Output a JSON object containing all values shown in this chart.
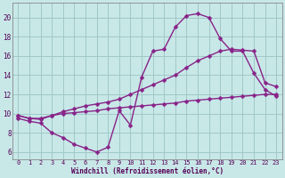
{
  "xlabel": "Windchill (Refroidissement éolien,°C)",
  "background_color": "#c8e8e8",
  "grid_color": "#a0c8c8",
  "line_color": "#882288",
  "x_ticks": [
    0,
    1,
    2,
    3,
    4,
    5,
    6,
    7,
    8,
    9,
    10,
    11,
    12,
    13,
    14,
    15,
    16,
    17,
    18,
    19,
    20,
    21,
    22,
    23
  ],
  "y_ticks": [
    6,
    8,
    10,
    12,
    14,
    16,
    18,
    20
  ],
  "xlim": [
    -0.5,
    23.5
  ],
  "ylim": [
    5.2,
    21.5
  ],
  "curve1_x": [
    0,
    1,
    2,
    3,
    4,
    5,
    6,
    7,
    8,
    9,
    10,
    11,
    12,
    13,
    14,
    15,
    16,
    17,
    18,
    19,
    20,
    21,
    22,
    23
  ],
  "curve1_y": [
    9.5,
    9.2,
    9.0,
    8.0,
    7.5,
    6.8,
    6.4,
    6.0,
    6.5,
    10.3,
    8.8,
    13.8,
    16.5,
    16.7,
    19.0,
    20.2,
    20.4,
    20.0,
    17.8,
    16.5,
    16.5,
    14.2,
    12.5,
    11.8
  ],
  "curve2_x": [
    0,
    1,
    2,
    3,
    4,
    5,
    6,
    7,
    8,
    9,
    10,
    11,
    12,
    13,
    14,
    15,
    16,
    17,
    18,
    19,
    20,
    21,
    22,
    23
  ],
  "curve2_y": [
    9.8,
    9.5,
    9.5,
    9.8,
    10.0,
    10.1,
    10.2,
    10.3,
    10.5,
    10.6,
    10.7,
    10.8,
    10.9,
    11.0,
    11.1,
    11.3,
    11.4,
    11.5,
    11.6,
    11.7,
    11.8,
    11.9,
    12.0,
    12.0
  ],
  "curve3_x": [
    0,
    1,
    2,
    3,
    4,
    5,
    6,
    7,
    8,
    9,
    10,
    11,
    12,
    13,
    14,
    15,
    16,
    17,
    18,
    19,
    20,
    21,
    22,
    23
  ],
  "curve3_y": [
    9.8,
    9.5,
    9.4,
    9.8,
    10.2,
    10.5,
    10.8,
    11.0,
    11.2,
    11.5,
    12.0,
    12.5,
    13.0,
    13.5,
    14.0,
    14.8,
    15.5,
    16.0,
    16.5,
    16.7,
    16.6,
    16.5,
    13.2,
    12.8
  ],
  "font_family": "monospace",
  "marker": "D",
  "markersize": 2.5,
  "linewidth": 1.0,
  "tick_fontsize": 5,
  "xlabel_fontsize": 5.5
}
